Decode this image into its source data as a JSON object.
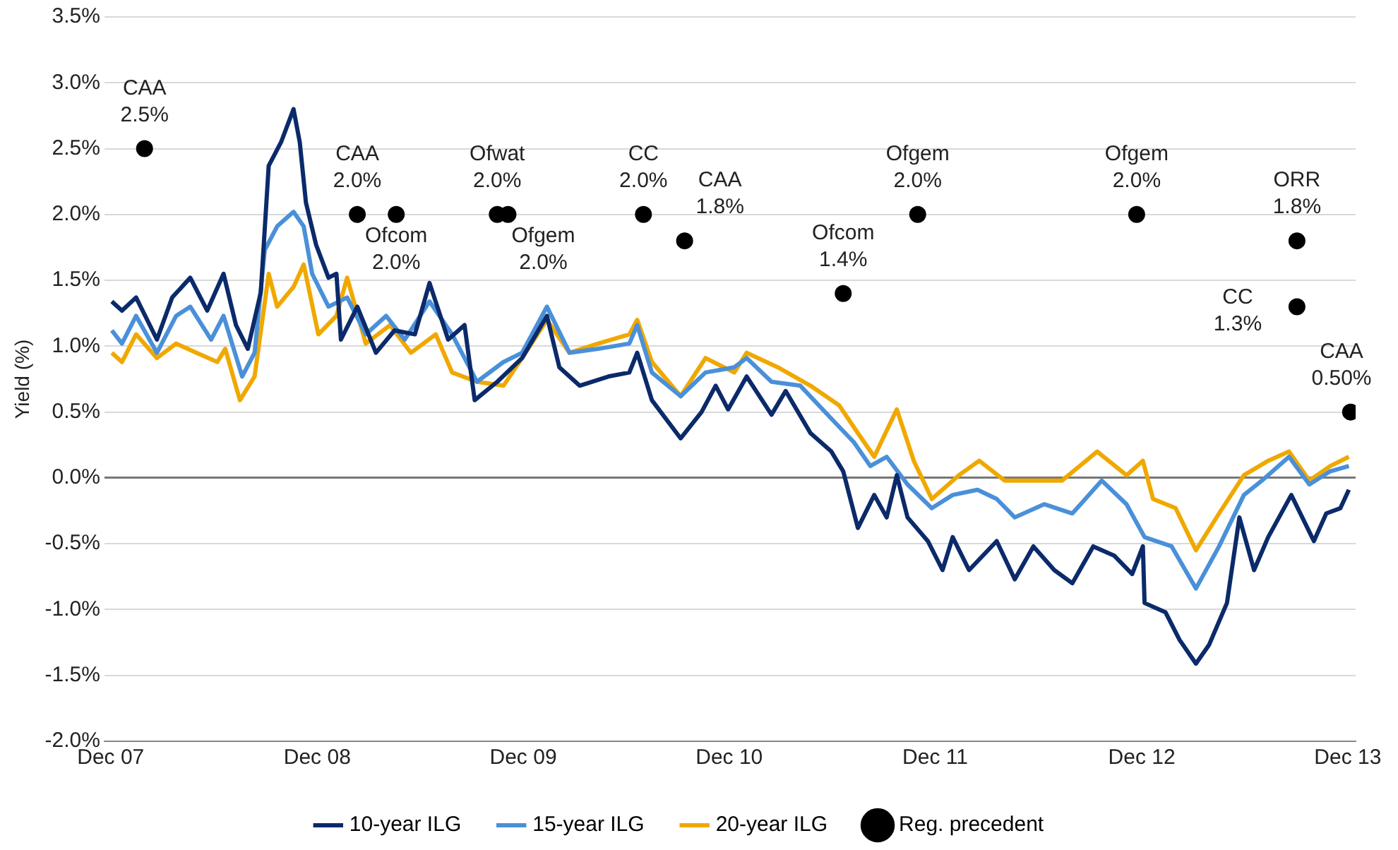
{
  "chart_data": {
    "type": "line",
    "ylabel": "Yield (%)",
    "xlim": [
      "2007-11-20",
      "2013-12-15"
    ],
    "xticks": [
      {
        "value": "2007-12-01",
        "label": "Dec 07"
      },
      {
        "value": "2008-12-01",
        "label": "Dec 08"
      },
      {
        "value": "2009-12-01",
        "label": "Dec 09"
      },
      {
        "value": "2010-12-01",
        "label": "Dec 10"
      },
      {
        "value": "2011-12-01",
        "label": "Dec 11"
      },
      {
        "value": "2012-12-01",
        "label": "Dec 12"
      },
      {
        "value": "2013-12-01",
        "label": "Dec 13"
      }
    ],
    "ylim": [
      -2.0,
      3.5
    ],
    "yticks": [
      {
        "value": -2.0,
        "label": "-2.0%"
      },
      {
        "value": -1.5,
        "label": "-1.5%"
      },
      {
        "value": -1.0,
        "label": "-1.0%"
      },
      {
        "value": -0.5,
        "label": "-0.5%"
      },
      {
        "value": 0,
        "label": "0.0%"
      },
      {
        "value": 0.5,
        "label": "0.5%"
      },
      {
        "value": 1.0,
        "label": "1.0%"
      },
      {
        "value": 1.5,
        "label": "1.5%"
      },
      {
        "value": 2.0,
        "label": "2.0%"
      },
      {
        "value": 2.5,
        "label": "2.5%"
      },
      {
        "value": 3.0,
        "label": "3.0%"
      },
      {
        "value": 3.5,
        "label": "3.5%"
      }
    ],
    "grid": "y",
    "legend": "bottom",
    "marker": "none",
    "series": [
      {
        "name": "10-year ILG",
        "color": "#0b2a6a",
        "x": [
          "2007-12-03",
          "2007-12-21",
          "2008-01-15",
          "2008-02-21",
          "2008-03-19",
          "2008-04-20",
          "2008-05-20",
          "2008-06-18",
          "2008-07-10",
          "2008-07-31",
          "2008-08-23",
          "2008-09-06",
          "2008-09-28",
          "2008-10-20",
          "2008-10-31",
          "2008-11-11",
          "2008-11-29",
          "2008-12-21",
          "2009-01-04",
          "2009-01-12",
          "2009-02-10",
          "2009-03-15",
          "2009-04-17",
          "2009-05-23",
          "2009-06-18",
          "2009-07-21",
          "2009-08-19",
          "2009-09-06",
          "2009-10-16",
          "2009-11-29",
          "2010-01-12",
          "2010-02-03",
          "2010-03-11",
          "2010-05-01",
          "2010-06-07",
          "2010-06-21",
          "2010-07-17",
          "2010-09-06",
          "2010-10-13",
          "2010-11-07",
          "2010-11-29",
          "2011-01-01",
          "2011-02-14",
          "2011-03-11",
          "2011-04-24",
          "2011-05-31",
          "2011-06-21",
          "2011-07-17",
          "2011-08-15",
          "2011-09-06",
          "2011-09-24",
          "2011-10-13",
          "2011-11-18",
          "2011-12-14",
          "2012-01-01",
          "2012-01-30",
          "2012-03-19",
          "2012-04-20",
          "2012-05-23",
          "2012-06-29",
          "2012-07-31",
          "2012-09-06",
          "2012-10-13",
          "2012-11-14",
          "2012-12-03",
          "2012-12-06",
          "2013-01-12",
          "2013-02-06",
          "2013-03-07",
          "2013-03-30",
          "2013-05-01",
          "2013-05-23",
          "2013-06-18",
          "2013-07-13",
          "2013-08-23",
          "2013-10-02",
          "2013-10-24",
          "2013-11-18",
          "2013-12-03"
        ],
        "values": [
          1.34,
          1.27,
          1.37,
          1.05,
          1.37,
          1.52,
          1.27,
          1.55,
          1.16,
          0.98,
          1.41,
          2.37,
          2.55,
          2.8,
          2.55,
          2.09,
          1.77,
          1.52,
          1.55,
          1.05,
          1.3,
          0.95,
          1.12,
          1.09,
          1.48,
          1.05,
          1.16,
          0.59,
          0.73,
          0.91,
          1.23,
          0.84,
          0.7,
          0.77,
          0.8,
          0.95,
          0.59,
          0.3,
          0.5,
          0.7,
          0.52,
          0.77,
          0.48,
          0.66,
          0.34,
          0.2,
          0.05,
          -0.38,
          -0.13,
          -0.3,
          0.02,
          -0.3,
          -0.48,
          -0.7,
          -0.45,
          -0.7,
          -0.48,
          -0.77,
          -0.52,
          -0.7,
          -0.8,
          -0.52,
          -0.59,
          -0.73,
          -0.52,
          -0.95,
          -1.02,
          -1.23,
          -1.41,
          -1.27,
          -0.95,
          -0.3,
          -0.7,
          -0.45,
          -0.13,
          -0.48,
          -0.27,
          -0.23,
          -0.09
        ]
      },
      {
        "name": "15-year ILG",
        "color": "#4a90d9",
        "x": [
          "2007-12-03",
          "2007-12-21",
          "2008-01-15",
          "2008-02-21",
          "2008-03-26",
          "2008-04-20",
          "2008-05-27",
          "2008-06-18",
          "2008-07-21",
          "2008-08-12",
          "2008-08-30",
          "2008-09-21",
          "2008-10-20",
          "2008-11-07",
          "2008-11-22",
          "2008-12-21",
          "2009-01-23",
          "2009-02-25",
          "2009-04-02",
          "2009-05-05",
          "2009-06-18",
          "2009-07-28",
          "2009-09-10",
          "2009-10-27",
          "2009-11-29",
          "2010-01-12",
          "2010-02-21",
          "2010-04-13",
          "2010-06-07",
          "2010-06-21",
          "2010-07-17",
          "2010-09-06",
          "2010-10-20",
          "2010-12-10",
          "2011-01-01",
          "2011-02-14",
          "2011-04-06",
          "2011-05-31",
          "2011-07-10",
          "2011-08-08",
          "2011-09-06",
          "2011-10-13",
          "2011-11-25",
          "2012-01-01",
          "2012-02-14",
          "2012-03-19",
          "2012-04-20",
          "2012-06-11",
          "2012-07-31",
          "2012-09-21",
          "2012-11-04",
          "2012-12-06",
          "2013-01-23",
          "2013-03-07",
          "2013-04-17",
          "2013-05-31",
          "2013-07-02",
          "2013-08-19",
          "2013-09-24",
          "2013-10-31",
          "2013-12-03"
        ],
        "values": [
          1.12,
          1.02,
          1.23,
          0.95,
          1.23,
          1.3,
          1.05,
          1.23,
          0.77,
          0.95,
          1.73,
          1.91,
          2.02,
          1.91,
          1.55,
          1.3,
          1.37,
          1.09,
          1.23,
          1.05,
          1.34,
          1.09,
          0.73,
          0.88,
          0.95,
          1.3,
          0.95,
          0.98,
          1.02,
          1.16,
          0.8,
          0.62,
          0.8,
          0.84,
          0.91,
          0.73,
          0.7,
          0.45,
          0.27,
          0.09,
          0.16,
          -0.05,
          -0.23,
          -0.13,
          -0.09,
          -0.16,
          -0.3,
          -0.2,
          -0.27,
          -0.02,
          -0.2,
          -0.45,
          -0.52,
          -0.84,
          -0.52,
          -0.13,
          -0.02,
          0.16,
          -0.05,
          0.05,
          0.09
        ]
      },
      {
        "name": "20-year ILG",
        "color": "#f0a800",
        "x": [
          "2007-12-03",
          "2007-12-21",
          "2008-01-15",
          "2008-02-21",
          "2008-03-26",
          "2008-05-01",
          "2008-06-07",
          "2008-06-21",
          "2008-07-17",
          "2008-08-12",
          "2008-09-06",
          "2008-09-21",
          "2008-10-20",
          "2008-11-07",
          "2008-12-03",
          "2009-01-04",
          "2009-01-23",
          "2009-02-25",
          "2009-04-09",
          "2009-05-16",
          "2009-06-29",
          "2009-07-28",
          "2009-09-10",
          "2009-10-27",
          "2009-11-29",
          "2010-01-12",
          "2010-02-21",
          "2010-04-13",
          "2010-06-07",
          "2010-06-21",
          "2010-07-17",
          "2010-09-06",
          "2010-10-20",
          "2010-12-10",
          "2011-01-01",
          "2011-02-25",
          "2011-04-24",
          "2011-06-14",
          "2011-07-17",
          "2011-08-15",
          "2011-09-24",
          "2011-10-24",
          "2011-11-25",
          "2012-01-12",
          "2012-02-17",
          "2012-04-02",
          "2012-05-23",
          "2012-07-13",
          "2012-09-13",
          "2012-11-04",
          "2012-12-03",
          "2012-12-21",
          "2013-01-30",
          "2013-03-07",
          "2013-04-17",
          "2013-05-31",
          "2013-07-13",
          "2013-08-19",
          "2013-09-24",
          "2013-10-31",
          "2013-12-03"
        ],
        "values": [
          0.95,
          0.88,
          1.09,
          0.91,
          1.02,
          0.95,
          0.88,
          0.98,
          0.59,
          0.77,
          1.55,
          1.3,
          1.45,
          1.62,
          1.09,
          1.23,
          1.52,
          1.02,
          1.16,
          0.95,
          1.09,
          0.8,
          0.73,
          0.7,
          0.91,
          1.2,
          0.95,
          1.02,
          1.09,
          1.2,
          0.88,
          0.62,
          0.91,
          0.8,
          0.95,
          0.84,
          0.7,
          0.55,
          0.34,
          0.16,
          0.52,
          0.13,
          -0.16,
          0.02,
          0.13,
          -0.02,
          -0.02,
          -0.02,
          0.2,
          0.02,
          0.13,
          -0.16,
          -0.23,
          -0.55,
          -0.27,
          0.02,
          0.13,
          0.2,
          -0.02,
          0.09,
          0.16
        ]
      },
      {
        "name": "Reg. precedent",
        "color": "#000000",
        "type": "scatter",
        "marker": "circle",
        "x": [
          "2008-01-30",
          "2009-02-10",
          "2009-04-20",
          "2009-10-16",
          "2009-11-04",
          "2010-07-02",
          "2010-09-13",
          "2011-06-21",
          "2011-10-31",
          "2012-11-22",
          "2013-09-02",
          "2013-09-02",
          "2013-12-06"
        ],
        "values": [
          2.5,
          2.0,
          2.0,
          2.0,
          2.0,
          2.0,
          1.8,
          1.4,
          2.0,
          2.0,
          1.8,
          1.3,
          0.5
        ]
      }
    ],
    "annotations": [
      {
        "text": "CAA 2.5%",
        "x": "2008-01-30",
        "y": 2.5
      },
      {
        "text": "CAA 2.0%",
        "x": "2009-02-10",
        "y": 2.0
      },
      {
        "text": "Ofcom 2.0%",
        "x": "2009-04-20",
        "y": 2.0
      },
      {
        "text": "Ofwat 2.0%",
        "x": "2009-10-16",
        "y": 2.0
      },
      {
        "text": "Ofgem 2.0%",
        "x": "2009-11-04",
        "y": 2.0
      },
      {
        "text": "CC 2.0%",
        "x": "2010-07-02",
        "y": 2.0
      },
      {
        "text": "CAA 1.8%",
        "x": "2010-09-13",
        "y": 1.8
      },
      {
        "text": "Ofcom 1.4%",
        "x": "2011-06-21",
        "y": 1.4
      },
      {
        "text": "Ofgem 2.0%",
        "x": "2011-10-31",
        "y": 2.0
      },
      {
        "text": "Ofgem 2.0%",
        "x": "2012-11-22",
        "y": 2.0
      },
      {
        "text": "ORR 1.8%",
        "x": "2013-09-02",
        "y": 1.8
      },
      {
        "text": "CC 1.3%",
        "x": "2013-09-02",
        "y": 1.3
      },
      {
        "text": "CAA 0.50%",
        "x": "2013-12-06",
        "y": 0.5
      }
    ]
  }
}
